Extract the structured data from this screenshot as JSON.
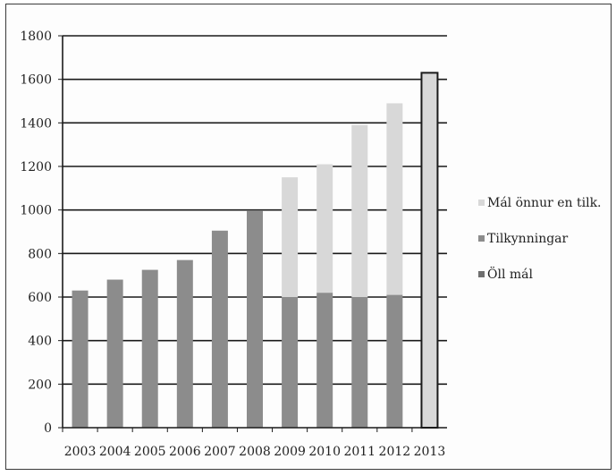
{
  "chart_data": {
    "type": "bar",
    "stacked": true,
    "categories": [
      "2003",
      "2004",
      "2005",
      "2006",
      "2007",
      "2008",
      "2009",
      "2010",
      "2011",
      "2012",
      "2013"
    ],
    "series": [
      {
        "name": "Öll mál",
        "color": "#6f6f6f",
        "values": [
          0,
          0,
          0,
          0,
          0,
          0,
          0,
          0,
          0,
          0,
          0
        ]
      },
      {
        "name": "Tilkynningar",
        "color": "#8c8c8c",
        "values": [
          630,
          680,
          725,
          770,
          905,
          995,
          600,
          620,
          600,
          610,
          0
        ]
      },
      {
        "name": "Mál önnur en tilk.",
        "color": "#d8d8d8",
        "values": [
          0,
          0,
          0,
          0,
          0,
          0,
          550,
          590,
          790,
          880,
          1630
        ]
      }
    ],
    "title": "",
    "xlabel": "",
    "ylabel": "",
    "ylim": [
      0,
      1800
    ],
    "yticks": [
      0,
      200,
      400,
      600,
      800,
      1000,
      1200,
      1400,
      1600,
      1800
    ],
    "grid": true,
    "legend_position": "right"
  }
}
